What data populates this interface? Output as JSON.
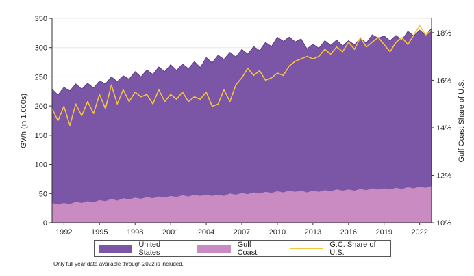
{
  "chart_data": {
    "type": "area",
    "title": "",
    "xlabel": "",
    "ylabel": "GWh (in 1,000s)",
    "y2label": "Gulf Coast Share of U.S.",
    "xlim": [
      1991.0,
      2023.0
    ],
    "ylim": [
      0,
      350
    ],
    "y2lim": [
      10,
      18.6
    ],
    "x_ticks": [
      "1992",
      "1995",
      "1998",
      "2001",
      "2004",
      "2007",
      "2010",
      "2013",
      "2016",
      "2019",
      "2022"
    ],
    "y_ticks": [
      "0",
      "50",
      "100",
      "150",
      "200",
      "250",
      "300",
      "350"
    ],
    "y2_ticks": [
      "10%",
      "12%",
      "14%",
      "16%",
      "18%"
    ],
    "colors": {
      "us": "#7b55a6",
      "us_edge": "#4f2f76",
      "gulf": "#c98bc2",
      "share": "#f5c242"
    },
    "x_start": 1991.0,
    "x_step": 0.5,
    "series": [
      {
        "name": "United States",
        "kind": "area",
        "values": [
          229,
          219,
          232,
          226,
          238,
          229,
          239,
          231,
          243,
          238,
          250,
          242,
          252,
          246,
          259,
          250,
          262,
          254,
          267,
          259,
          271,
          261,
          272,
          264,
          276,
          266,
          283,
          274,
          287,
          280,
          292,
          284,
          297,
          289,
          302,
          295,
          309,
          302,
          318,
          311,
          318,
          310,
          315,
          298,
          306,
          299,
          312,
          304,
          313,
          303,
          312,
          305,
          316,
          308,
          322,
          316,
          320,
          312,
          321,
          313,
          328,
          320,
          330,
          321,
          333
        ]
      },
      {
        "name": "Gulf Coast",
        "kind": "area",
        "values": [
          34,
          31,
          34,
          32,
          36,
          34,
          37,
          35,
          39,
          37,
          41,
          38,
          42,
          40,
          43,
          41,
          44,
          42,
          45,
          43,
          46,
          44,
          47,
          45,
          48,
          46,
          48,
          46,
          48,
          46,
          50,
          48,
          51,
          49,
          52,
          50,
          53,
          51,
          54,
          52,
          55,
          53,
          55,
          52,
          55,
          53,
          56,
          54,
          57,
          55,
          57,
          55,
          58,
          56,
          59,
          57,
          59,
          57,
          60,
          58,
          61,
          59,
          62,
          60,
          63
        ]
      },
      {
        "name": "G.C. Share of U.S.",
        "kind": "line",
        "axis": "right",
        "values": [
          14.8,
          14.3,
          14.9,
          14.1,
          15.0,
          14.5,
          15.1,
          14.6,
          15.4,
          14.8,
          15.8,
          15.0,
          15.6,
          15.1,
          15.5,
          15.3,
          15.4,
          15.0,
          15.6,
          15.1,
          15.4,
          15.2,
          15.5,
          15.1,
          15.3,
          15.2,
          15.5,
          14.9,
          15.0,
          15.6,
          15.1,
          15.8,
          16.1,
          16.5,
          16.2,
          16.4,
          16.0,
          16.1,
          16.3,
          16.2,
          16.6,
          16.8,
          16.9,
          17.0,
          16.9,
          17.0,
          17.3,
          17.1,
          17.4,
          17.2,
          17.6,
          17.3,
          17.8,
          17.4,
          17.6,
          17.8,
          17.5,
          17.2,
          17.6,
          17.8,
          17.5,
          17.9,
          18.3,
          17.9,
          18.1
        ]
      }
    ]
  },
  "legend": {
    "us_label": "United States",
    "gulf_label": "Gulf Coast",
    "share_label": "G.C. Share of U.S."
  },
  "footnote": "Only full year data available through 2022 is included."
}
